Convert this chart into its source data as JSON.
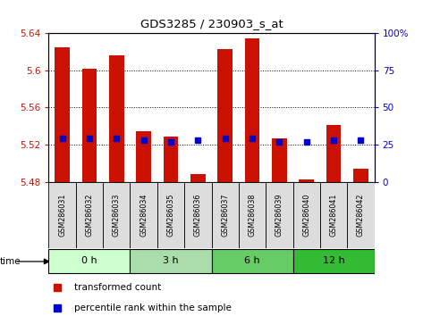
{
  "title": "GDS3285 / 230903_s_at",
  "samples": [
    "GSM286031",
    "GSM286032",
    "GSM286033",
    "GSM286034",
    "GSM286035",
    "GSM286036",
    "GSM286037",
    "GSM286038",
    "GSM286039",
    "GSM286040",
    "GSM286041",
    "GSM286042"
  ],
  "transformed_count": [
    5.625,
    5.602,
    5.616,
    5.534,
    5.529,
    5.488,
    5.623,
    5.634,
    5.527,
    5.482,
    5.541,
    5.494
  ],
  "percentile_rank": [
    29,
    29,
    29,
    28,
    27,
    28,
    29,
    29,
    27,
    27,
    28,
    28
  ],
  "bar_bottom": 5.48,
  "ylim_left": [
    5.48,
    5.64
  ],
  "ylim_right": [
    0,
    100
  ],
  "yticks_left": [
    5.48,
    5.52,
    5.56,
    5.6,
    5.64
  ],
  "yticks_right": [
    0,
    25,
    50,
    75,
    100
  ],
  "bar_color": "#cc1100",
  "square_color": "#0000cc",
  "groups": [
    {
      "label": "0 h",
      "start": 0,
      "end": 3,
      "color": "#ccffcc"
    },
    {
      "label": "3 h",
      "start": 3,
      "end": 6,
      "color": "#aaddaa"
    },
    {
      "label": "6 h",
      "start": 6,
      "end": 9,
      "color": "#66cc66"
    },
    {
      "label": "12 h",
      "start": 9,
      "end": 12,
      "color": "#33bb33"
    }
  ],
  "grid_color": "black",
  "bg_color": "white",
  "bar_width": 0.55,
  "square_size": 5,
  "fig_width": 4.73,
  "fig_height": 3.54,
  "dpi": 100
}
